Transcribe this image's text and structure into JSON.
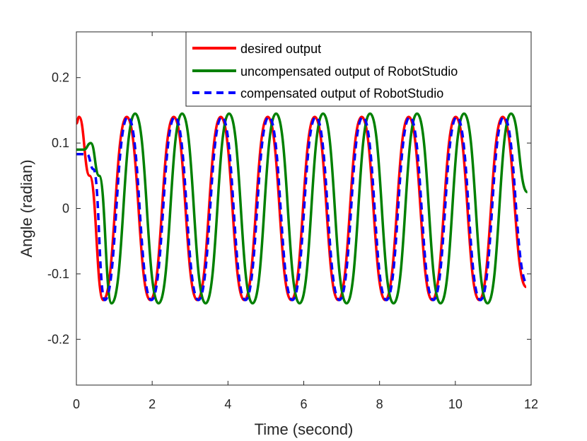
{
  "chart_data": {
    "type": "line",
    "xlabel": "Time (second)",
    "ylabel": "Angle (radian)",
    "xlim": [
      0,
      12
    ],
    "ylim": [
      -0.27,
      0.27
    ],
    "xticks": [
      0,
      2,
      4,
      6,
      8,
      10,
      12
    ],
    "xtick_labels": [
      "0",
      "2",
      "4",
      "6",
      "8",
      "10",
      "12"
    ],
    "yticks": [
      -0.2,
      -0.1,
      0,
      0.1,
      0.2
    ],
    "ytick_labels": [
      "-0.2",
      "-0.1",
      "0",
      "0.1",
      "0.2"
    ],
    "grid": false,
    "legend_position": "top-right",
    "series": [
      {
        "name": "desired output",
        "color": "#ff0000",
        "style": "solid",
        "x": [
          0,
          0.07,
          0.35,
          0.71,
          1.33,
          1.95,
          2.57,
          3.19,
          3.81,
          4.43,
          5.05,
          5.67,
          6.29,
          6.91,
          7.53,
          8.15,
          8.77,
          9.39,
          10.01,
          10.63,
          11.25,
          11.87
        ],
        "y": [
          0.13,
          0.14,
          0.05,
          -0.14,
          0.14,
          -0.14,
          0.14,
          -0.14,
          0.14,
          -0.14,
          0.14,
          -0.14,
          0.14,
          -0.14,
          0.14,
          -0.14,
          0.14,
          -0.14,
          0.14,
          -0.14,
          0.14,
          -0.12
        ]
      },
      {
        "name": "uncompensated output of RobotStudio",
        "color": "#008000",
        "style": "solid",
        "x": [
          0,
          0.2,
          0.38,
          0.6,
          0.93,
          1.55,
          2.17,
          2.79,
          3.41,
          4.03,
          4.65,
          5.27,
          5.89,
          6.51,
          7.13,
          7.75,
          8.37,
          8.99,
          9.61,
          10.23,
          10.85,
          11.47,
          11.9
        ],
        "y": [
          0.09,
          0.09,
          0.1,
          0.05,
          -0.145,
          0.145,
          -0.145,
          0.145,
          -0.145,
          0.145,
          -0.145,
          0.145,
          -0.145,
          0.145,
          -0.145,
          0.145,
          -0.145,
          0.145,
          -0.145,
          0.145,
          -0.145,
          0.145,
          0.025
        ]
      },
      {
        "name": "compensated output of RobotStudio",
        "color": "#0000ff",
        "style": "dashed",
        "x": [
          0,
          0.28,
          0.45,
          0.75,
          1.36,
          1.98,
          2.6,
          3.22,
          3.84,
          4.46,
          5.08,
          5.7,
          6.32,
          6.94,
          7.56,
          8.18,
          8.8,
          9.42,
          10.04,
          10.66,
          11.28,
          11.9
        ],
        "y": [
          0.083,
          0.083,
          0.06,
          -0.14,
          0.14,
          -0.14,
          0.14,
          -0.14,
          0.14,
          -0.14,
          0.14,
          -0.14,
          0.14,
          -0.14,
          0.14,
          -0.14,
          0.14,
          -0.14,
          0.14,
          -0.14,
          0.14,
          -0.115
        ]
      }
    ]
  }
}
